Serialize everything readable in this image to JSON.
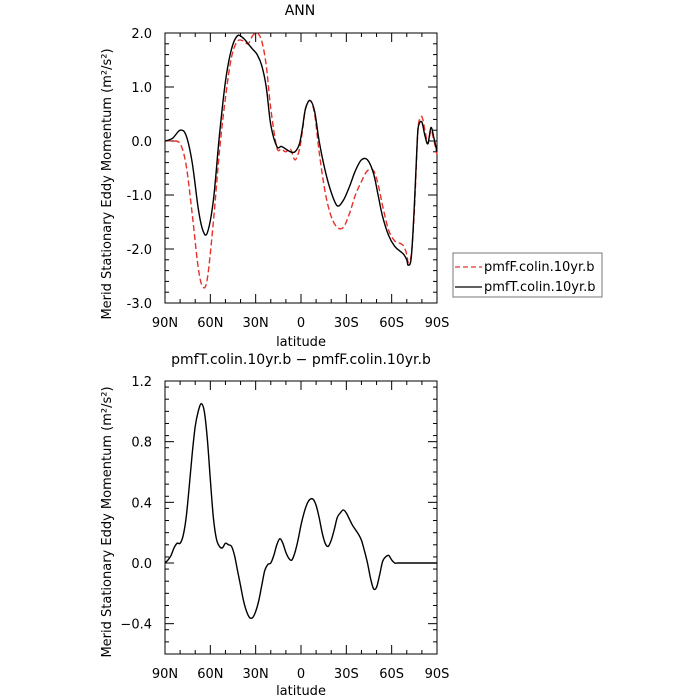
{
  "chart_data": [
    {
      "type": "line",
      "title": "ANN",
      "xlabel": "latitude",
      "ylabel": "Merid Stationary Eddy Momentum",
      "yunit": "(m²/s²)",
      "xlim": [
        90,
        -90
      ],
      "ylim": [
        -3.0,
        2.0
      ],
      "xticks": [
        90,
        60,
        30,
        0,
        -30,
        -60,
        -90
      ],
      "xtick_labels": [
        "90N",
        "60N",
        "30N",
        "0",
        "30S",
        "60S",
        "90S"
      ],
      "yticks": [
        -3.0,
        -2.0,
        -1.0,
        0.0,
        1.0,
        2.0
      ],
      "ytick_labels": [
        "-3.0",
        "-2.0",
        "-1.0",
        "0.0",
        "1.0",
        "2.0"
      ],
      "legend": "outside-right",
      "grid": false,
      "series": [
        {
          "name": "pmfF.colin.10yr.b",
          "color": "#e8302a",
          "dash": "dashed",
          "x": [
            90,
            85,
            80,
            76,
            72,
            68,
            65,
            62,
            58,
            54,
            50,
            46,
            42,
            38,
            35,
            32,
            29,
            26,
            23,
            20,
            16,
            13,
            10,
            7,
            4,
            1,
            -1,
            -3,
            -6,
            -9,
            -12,
            -16,
            -20,
            -24,
            -28,
            -32,
            -36,
            -40,
            -44,
            -48,
            -51,
            -54,
            -58,
            -62,
            -66,
            -68,
            -70,
            -71,
            -73,
            -75,
            -77,
            -78,
            -80,
            -82,
            -84,
            -86,
            -88,
            -90
          ],
          "y": [
            0.0,
            0.0,
            -0.05,
            -0.45,
            -1.35,
            -2.35,
            -2.7,
            -2.55,
            -1.5,
            -0.2,
            0.8,
            1.55,
            1.85,
            1.85,
            1.8,
            1.95,
            2.0,
            1.85,
            1.4,
            0.6,
            -0.12,
            -0.15,
            -0.2,
            -0.15,
            -0.35,
            -0.15,
            0.2,
            0.6,
            0.75,
            0.5,
            -0.2,
            -0.95,
            -1.4,
            -1.6,
            -1.6,
            -1.35,
            -1.0,
            -0.75,
            -0.55,
            -0.55,
            -0.8,
            -1.2,
            -1.65,
            -1.85,
            -1.9,
            -1.95,
            -2.1,
            -2.25,
            -2.1,
            -1.3,
            0.0,
            0.35,
            0.45,
            0.2,
            -0.05,
            0.2,
            0.0,
            -0.25
          ]
        },
        {
          "name": "pmfT.colin.10yr.b",
          "color": "#000000",
          "dash": "solid",
          "x": [
            90,
            85,
            80,
            76,
            72,
            68,
            65,
            62,
            58,
            54,
            50,
            46,
            42,
            38,
            35,
            32,
            29,
            26,
            23,
            20,
            16,
            13,
            10,
            7,
            4,
            1,
            -1,
            -3,
            -6,
            -9,
            -12,
            -16,
            -20,
            -24,
            -28,
            -32,
            -36,
            -40,
            -44,
            -48,
            -51,
            -54,
            -58,
            -62,
            -66,
            -68,
            -70,
            -71,
            -73,
            -75,
            -77,
            -78,
            -80,
            -82,
            -84,
            -86,
            -88,
            -90
          ],
          "y": [
            0.0,
            0.05,
            0.2,
            0.1,
            -0.4,
            -1.25,
            -1.65,
            -1.7,
            -1.1,
            0.1,
            1.1,
            1.7,
            1.95,
            1.9,
            1.8,
            1.7,
            1.6,
            1.4,
            1.0,
            0.3,
            -0.1,
            -0.1,
            -0.15,
            -0.2,
            -0.2,
            -0.05,
            0.25,
            0.6,
            0.75,
            0.55,
            0.0,
            -0.55,
            -0.95,
            -1.2,
            -1.1,
            -0.85,
            -0.55,
            -0.35,
            -0.35,
            -0.6,
            -1.0,
            -1.4,
            -1.75,
            -1.95,
            -2.05,
            -2.1,
            -2.2,
            -2.3,
            -2.15,
            -1.2,
            0.05,
            0.3,
            0.35,
            0.1,
            -0.05,
            0.25,
            0.05,
            -0.2
          ]
        }
      ]
    },
    {
      "type": "line",
      "title": "pmfT.colin.10yr.b − pmfF.colin.10yr.b",
      "xlabel": "latitude",
      "ylabel": "Merid Stationary Eddy Momentum",
      "yunit": "(m²/s²)",
      "xlim": [
        90,
        -90
      ],
      "ylim": [
        -0.6,
        1.2
      ],
      "xticks": [
        90,
        60,
        30,
        0,
        -30,
        -60,
        -90
      ],
      "xtick_labels": [
        "90N",
        "60N",
        "30N",
        "0",
        "30S",
        "60S",
        "90S"
      ],
      "yticks": [
        -0.4,
        0.0,
        0.4,
        0.8,
        1.2
      ],
      "ytick_labels": [
        "−0.4",
        "0.0",
        "0.4",
        "0.8",
        "1.2"
      ],
      "grid": false,
      "series": [
        {
          "color": "#000000",
          "dash": "solid",
          "x": [
            90,
            88,
            86,
            84,
            82,
            80,
            78,
            76,
            74,
            72,
            70,
            68,
            66,
            64,
            62,
            60,
            58,
            56,
            54,
            52,
            50,
            48,
            46,
            44,
            42,
            40,
            38,
            36,
            34,
            32,
            30,
            28,
            26,
            24,
            22,
            20,
            18,
            16,
            14,
            12,
            10,
            8,
            6,
            4,
            2,
            0,
            -2,
            -4,
            -6,
            -8,
            -10,
            -12,
            -14,
            -16,
            -18,
            -20,
            -22,
            -24,
            -26,
            -28,
            -30,
            -32,
            -34,
            -36,
            -38,
            -40,
            -42,
            -44,
            -46,
            -48,
            -50,
            -52,
            -54,
            -56,
            -58,
            -60,
            -62,
            -64,
            -66,
            -68,
            -70,
            -72,
            -74,
            -76,
            -78,
            -80,
            -82,
            -84,
            -86,
            -88,
            -90
          ],
          "y": [
            0.0,
            0.02,
            0.05,
            0.1,
            0.13,
            0.13,
            0.18,
            0.3,
            0.5,
            0.72,
            0.9,
            1.0,
            1.05,
            1.0,
            0.82,
            0.55,
            0.3,
            0.16,
            0.11,
            0.1,
            0.13,
            0.12,
            0.11,
            0.05,
            -0.05,
            -0.15,
            -0.25,
            -0.32,
            -0.36,
            -0.36,
            -0.32,
            -0.25,
            -0.15,
            -0.05,
            -0.01,
            0.0,
            0.05,
            0.12,
            0.16,
            0.13,
            0.07,
            0.03,
            0.02,
            0.07,
            0.15,
            0.25,
            0.33,
            0.39,
            0.42,
            0.42,
            0.38,
            0.3,
            0.2,
            0.13,
            0.11,
            0.15,
            0.22,
            0.3,
            0.33,
            0.35,
            0.33,
            0.29,
            0.25,
            0.22,
            0.19,
            0.15,
            0.08,
            0.0,
            -0.1,
            -0.17,
            -0.16,
            -0.08,
            0.01,
            0.04,
            0.05,
            0.02,
            0.0,
            0.0,
            0.0,
            0.0,
            0.0,
            0.0,
            0.0,
            0.0,
            0.0,
            0.0,
            0.0,
            0.0,
            0.0,
            0.0,
            0.0
          ]
        }
      ]
    }
  ]
}
